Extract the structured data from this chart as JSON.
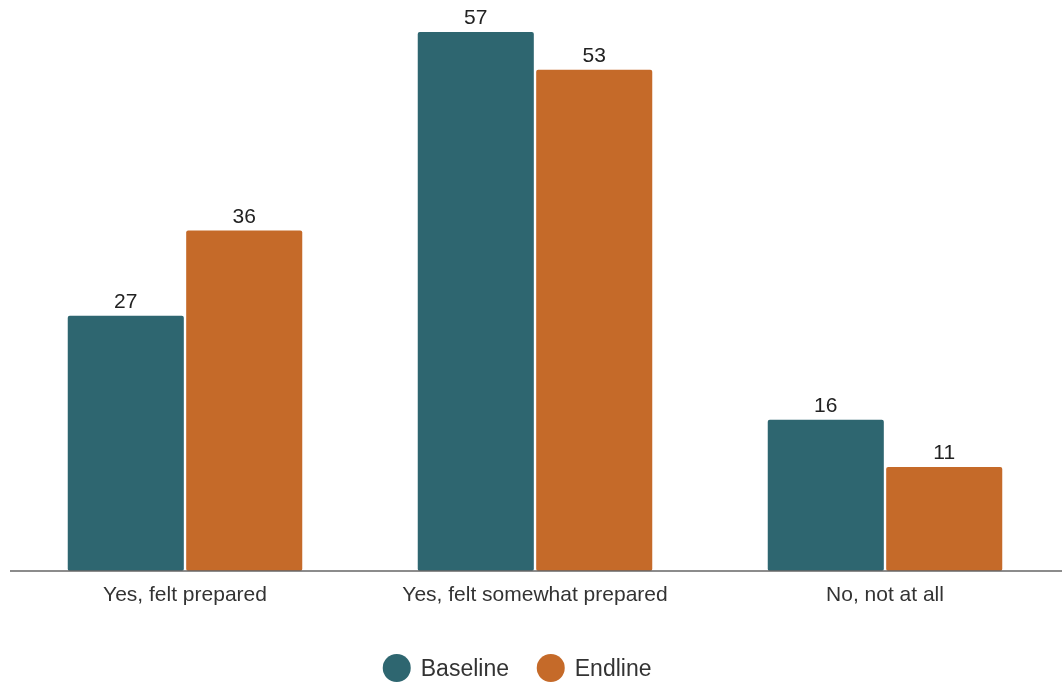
{
  "chart_data": {
    "type": "bar",
    "categories": [
      "Yes, felt prepared",
      "Yes, felt somewhat prepared",
      "No, not at all"
    ],
    "series": [
      {
        "name": "Baseline",
        "color": "#2e6670",
        "values": [
          27,
          57,
          16
        ]
      },
      {
        "name": "Endline",
        "color": "#c56a29",
        "values": [
          36,
          53,
          11
        ]
      }
    ],
    "ylim": [
      0,
      57
    ],
    "data_labels": true,
    "legend": "bottom"
  }
}
